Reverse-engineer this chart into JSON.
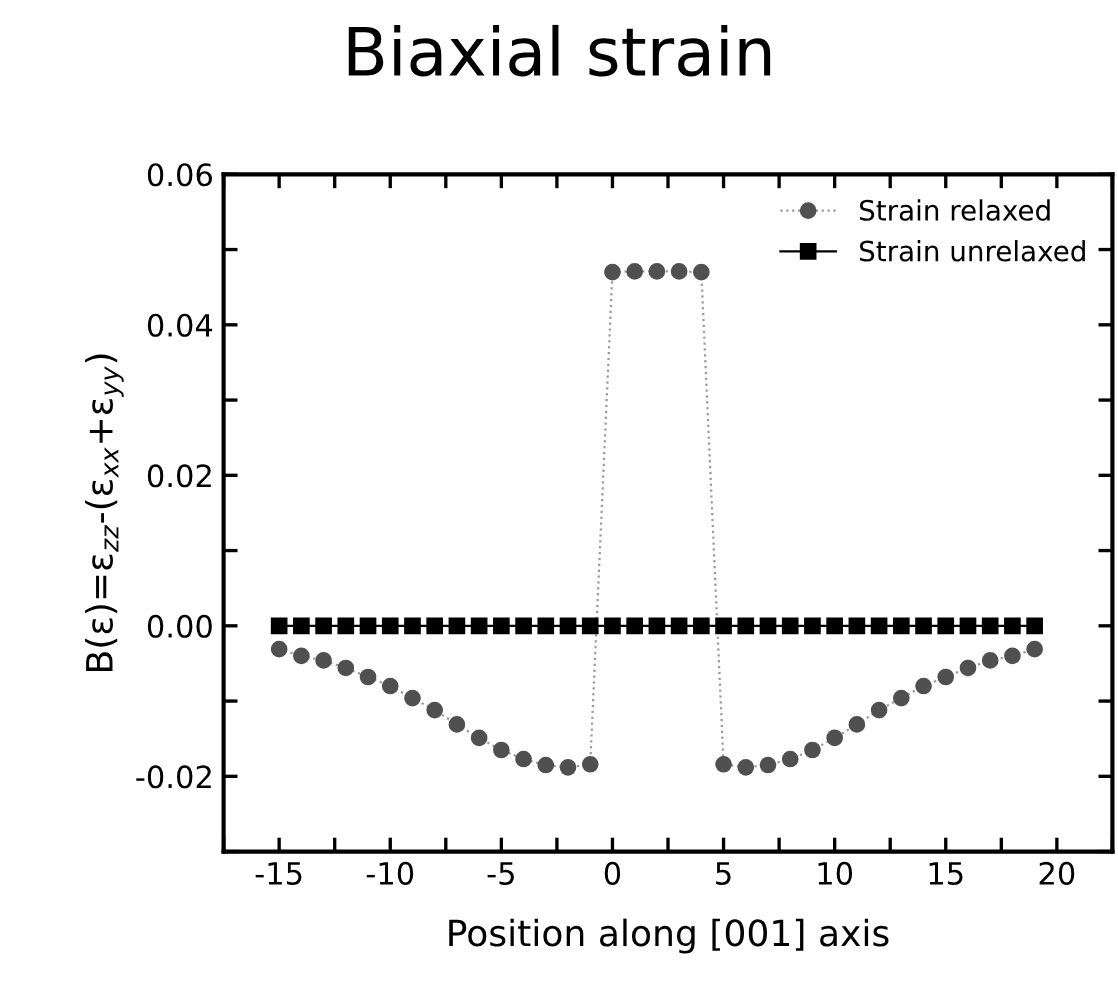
{
  "chart_data": {
    "type": "line",
    "title": "Biaxial strain",
    "xlabel": "Position along [001] axis",
    "ylabel": "B(ε)=ε$_{zz}$-(ε$_{xx}$+ε$_{yy}$)",
    "xlim": [
      -17.5,
      22.5
    ],
    "ylim": [
      -0.03,
      0.06
    ],
    "xticks": [
      {
        "value": -17.5,
        "label": null
      },
      -15,
      {
        "value": -12.5,
        "label": null
      },
      -10,
      {
        "value": -7.5,
        "label": null
      },
      -5,
      {
        "value": -2.5,
        "label": null
      },
      0,
      {
        "value": 2.5,
        "label": null
      },
      5,
      {
        "value": 7.5,
        "label": null
      },
      10,
      {
        "value": 12.5,
        "label": null
      },
      15,
      {
        "value": 17.5,
        "label": null
      },
      20,
      {
        "value": 22.5,
        "label": null
      }
    ],
    "yticks": [
      {
        "value": -0.03,
        "label": null
      },
      {
        "value": -0.02,
        "label": "-0.02"
      },
      {
        "value": -0.01,
        "label": null
      },
      {
        "value": 0.0,
        "label": "0.00"
      },
      {
        "value": 0.01,
        "label": null
      },
      {
        "value": 0.02,
        "label": "0.02"
      },
      {
        "value": 0.03,
        "label": null
      },
      {
        "value": 0.04,
        "label": "0.04"
      },
      {
        "value": 0.05,
        "label": null
      },
      {
        "value": 0.06,
        "label": "0.06"
      }
    ],
    "x": [
      -15,
      -14,
      -13,
      -12,
      -11,
      -10,
      -9,
      -8,
      -7,
      -6,
      -5,
      -4,
      -3,
      -2,
      -1,
      0,
      1,
      2,
      3,
      4,
      5,
      6,
      7,
      8,
      9,
      10,
      11,
      12,
      13,
      14,
      15,
      16,
      17,
      18,
      19
    ],
    "grid": false,
    "legend": "top right",
    "series": [
      {
        "name": "Strain relaxed",
        "color": "#505050",
        "marker": "circle",
        "line_style": "dotted",
        "values": [
          -0.0031,
          -0.004,
          -0.0046,
          -0.0056,
          -0.0068,
          -0.008,
          -0.0096,
          -0.0112,
          -0.0131,
          -0.0149,
          -0.0165,
          -0.0177,
          -0.0185,
          -0.0188,
          -0.0184,
          0.047,
          0.0471,
          0.0471,
          0.0471,
          0.047,
          -0.0184,
          -0.0188,
          -0.0185,
          -0.0177,
          -0.0165,
          -0.0149,
          -0.0131,
          -0.0112,
          -0.0096,
          -0.008,
          -0.0068,
          -0.0056,
          -0.0046,
          -0.004,
          -0.0031
        ]
      },
      {
        "name": "Strain unrelaxed",
        "color": "#000000",
        "marker": "square",
        "line_style": "solid",
        "values": [
          0,
          0,
          0,
          0,
          0,
          0,
          0,
          0,
          0,
          0,
          0,
          0,
          0,
          0,
          0,
          0,
          0,
          0,
          0,
          0,
          0,
          0,
          0,
          0,
          0,
          0,
          0,
          0,
          0,
          0,
          0,
          0,
          0,
          0,
          0
        ]
      }
    ]
  }
}
